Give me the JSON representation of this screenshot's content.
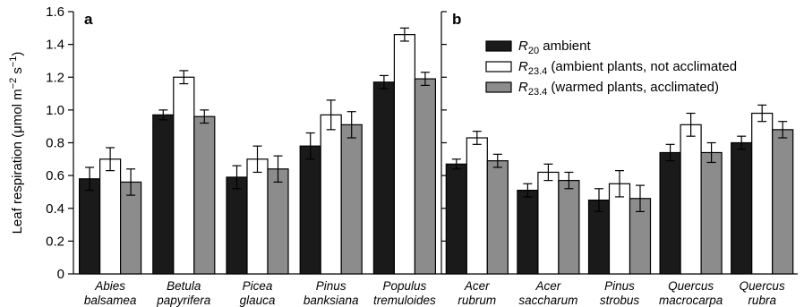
{
  "chart_data": {
    "type": "bar",
    "ylabel": "Leaf respiration (μmol m",
    "ylabel_sup1": "−2",
    "ylabel_mid": " s",
    "ylabel_sup2": "−1",
    "ylabel_end": ")",
    "ylim": [
      0,
      1.6
    ],
    "yticks": [
      "0",
      "0.2",
      "0.4",
      "0.6",
      "0.8",
      "1.0",
      "1.2",
      "1.4",
      "1.6"
    ],
    "legend": [
      {
        "symbol": "R",
        "sub": "20",
        "text": " ambient",
        "color": "#1a1a1a"
      },
      {
        "symbol": "R",
        "sub": "23.4",
        "text": " (ambient plants, not acclimated",
        "color": "#ffffff"
      },
      {
        "symbol": "R",
        "sub": "23.4",
        "text": " (warmed plants, acclimated)",
        "color": "#8c8c8c"
      }
    ],
    "panels": [
      {
        "label": "a",
        "categories": [
          [
            "Abies",
            "balsamea"
          ],
          [
            "Betula",
            "papyrifera"
          ],
          [
            "Picea",
            "glauca"
          ],
          [
            "Pinus",
            "banksiana"
          ],
          [
            "Populus",
            "tremuloides"
          ]
        ],
        "series": [
          {
            "values": [
              0.58,
              0.97,
              0.59,
              0.78,
              1.17
            ],
            "errors": [
              0.07,
              0.03,
              0.07,
              0.08,
              0.04
            ]
          },
          {
            "values": [
              0.7,
              1.2,
              0.7,
              0.97,
              1.46
            ],
            "errors": [
              0.07,
              0.04,
              0.08,
              0.09,
              0.04
            ]
          },
          {
            "values": [
              0.56,
              0.96,
              0.64,
              0.91,
              1.19
            ],
            "errors": [
              0.08,
              0.04,
              0.08,
              0.08,
              0.04
            ]
          }
        ]
      },
      {
        "label": "b",
        "categories": [
          [
            "Acer",
            "rubrum"
          ],
          [
            "Acer",
            "saccharum"
          ],
          [
            "Pinus",
            "strobus"
          ],
          [
            "Quercus",
            "macrocarpa"
          ],
          [
            "Quercus",
            "rubra"
          ]
        ],
        "series": [
          {
            "values": [
              0.67,
              0.51,
              0.45,
              0.74,
              0.8
            ],
            "errors": [
              0.03,
              0.04,
              0.07,
              0.05,
              0.04
            ]
          },
          {
            "values": [
              0.83,
              0.62,
              0.55,
              0.91,
              0.98
            ],
            "errors": [
              0.04,
              0.05,
              0.08,
              0.07,
              0.05
            ]
          },
          {
            "values": [
              0.69,
              0.57,
              0.46,
              0.74,
              0.88
            ],
            "errors": [
              0.04,
              0.05,
              0.08,
              0.06,
              0.05
            ]
          }
        ]
      }
    ]
  }
}
